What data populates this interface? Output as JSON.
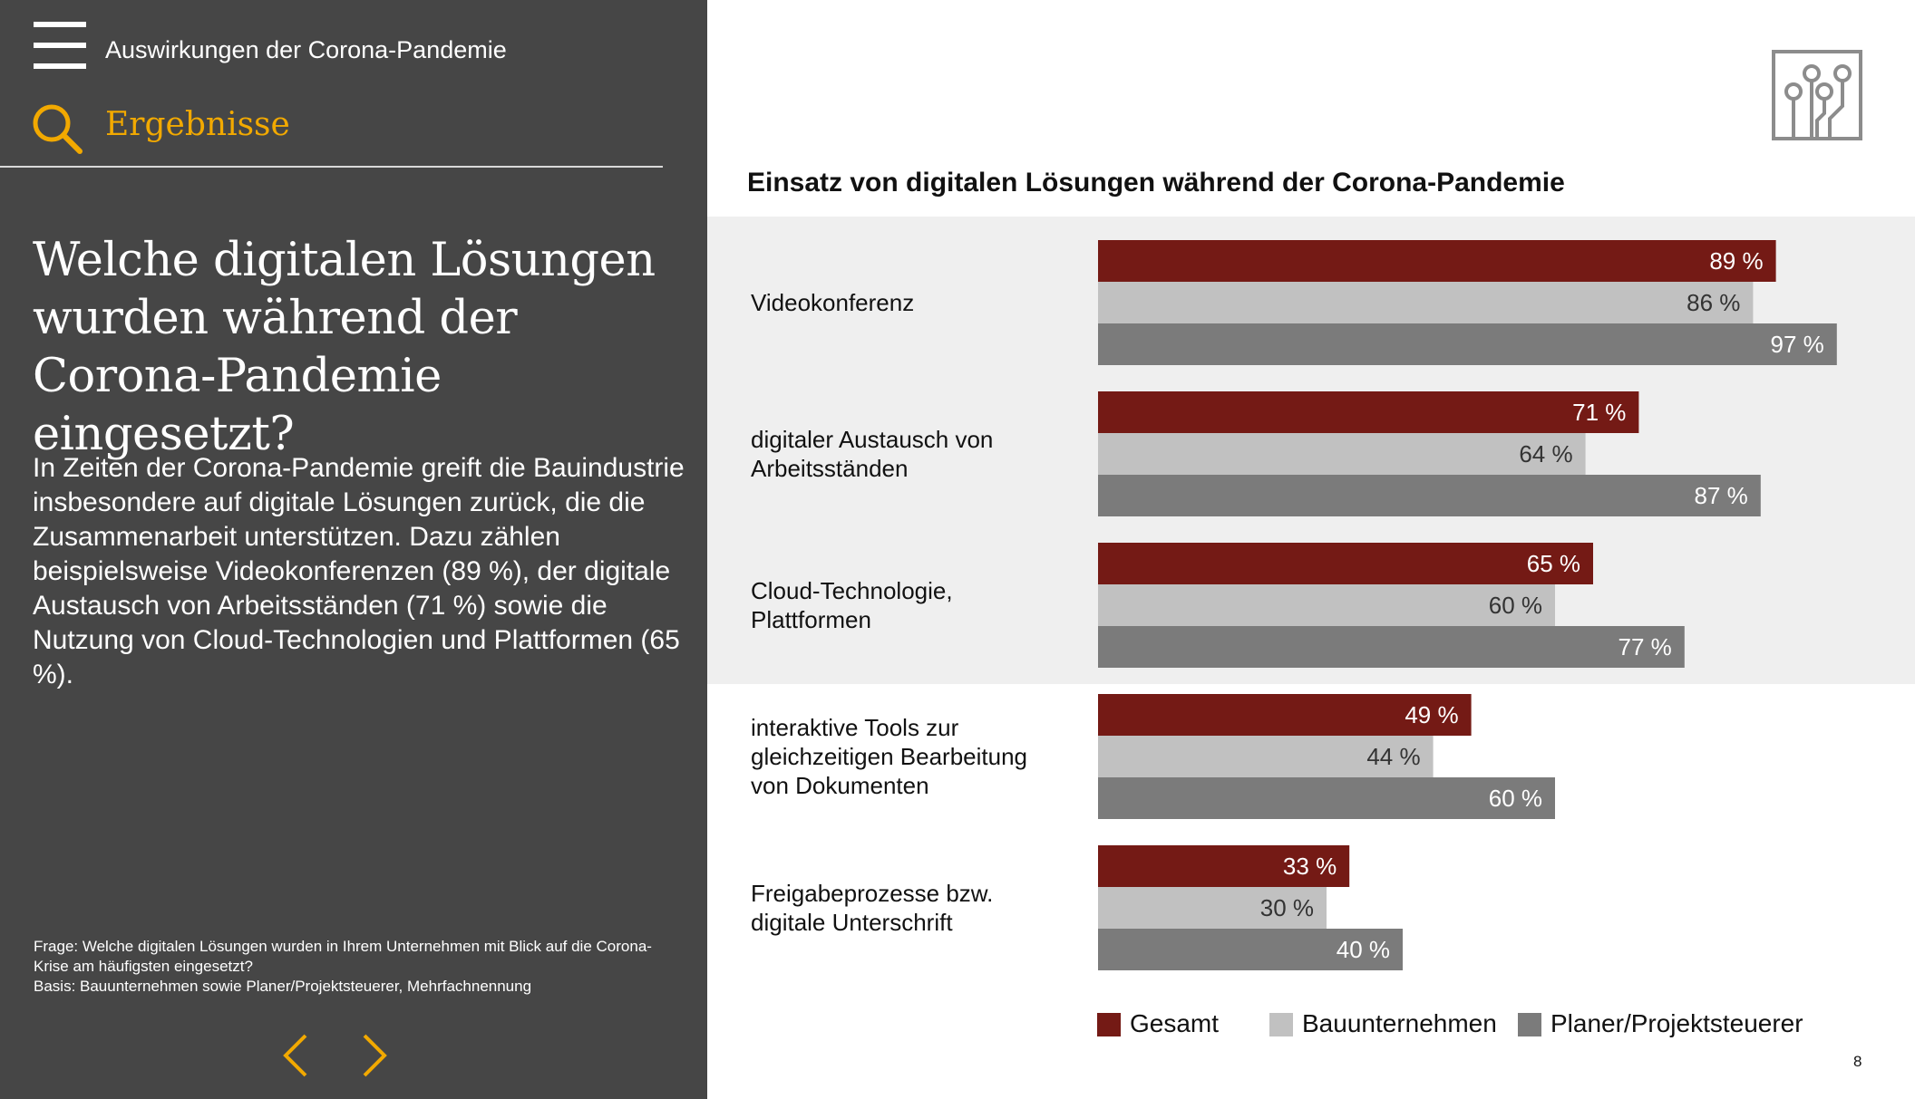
{
  "header": {
    "menu_icon": "hamburger-menu-icon",
    "section_title": "Auswirkungen der Corona-Pandemie",
    "results_label": "Ergebnisse",
    "search_icon": "search-icon",
    "accent_color": "#f2a900"
  },
  "left": {
    "question": "Welche digitalen Lösungen wurden während der Corona-Pandemie eingesetzt?",
    "intro": "In Zeiten der Corona-Pandemie greift die Bauindustrie insbesondere auf digitale Lösungen zurück, die die Zusammenarbeit unterstützen. Dazu zählen beispielsweise Videokonferenzen (89 %), der digitale Austausch von Arbeitsständen (71 %) sowie die Nutzung von Cloud-Technologien und Plattformen (65 %).",
    "footnote_1": "Frage: Welche digitalen Lösungen wurden in Ihrem Unternehmen mit Blick auf die Corona-Krise am häufigsten eingesetzt?",
    "footnote_2": "Basis: Bauunternehmen sowie Planer/Projektsteuerer, Mehrfachnennung",
    "prev_icon": "chevron-left-icon",
    "next_icon": "chevron-right-icon"
  },
  "corner_icon": "circuit-icon",
  "page_number": "8",
  "chart_data": {
    "type": "bar",
    "orientation": "horizontal",
    "title": "Einsatz von digitalen Lösungen während der Corona-Pandemie",
    "categories": [
      "Videokonferenz",
      "digitaler Austausch von Arbeitsständen",
      "Cloud-Technologie, Plattformen",
      "interaktive Tools zur gleichzeitigen Bearbeitung von Dokumenten",
      "Freigabeprozesse bzw. digitale Unterschrift"
    ],
    "series": [
      {
        "name": "Gesamt",
        "color": "#741a15",
        "values": [
          89,
          71,
          65,
          49,
          33
        ]
      },
      {
        "name": "Bauunternehmen",
        "color": "#c1c1c1",
        "values": [
          86,
          64,
          60,
          44,
          30
        ]
      },
      {
        "name": "Planer/Projektsteuerer",
        "color": "#7b7b7b",
        "values": [
          97,
          87,
          77,
          60,
          40
        ]
      }
    ],
    "value_suffix": " %",
    "xlim": [
      0,
      100
    ],
    "grid": false,
    "legend": "bottom"
  }
}
